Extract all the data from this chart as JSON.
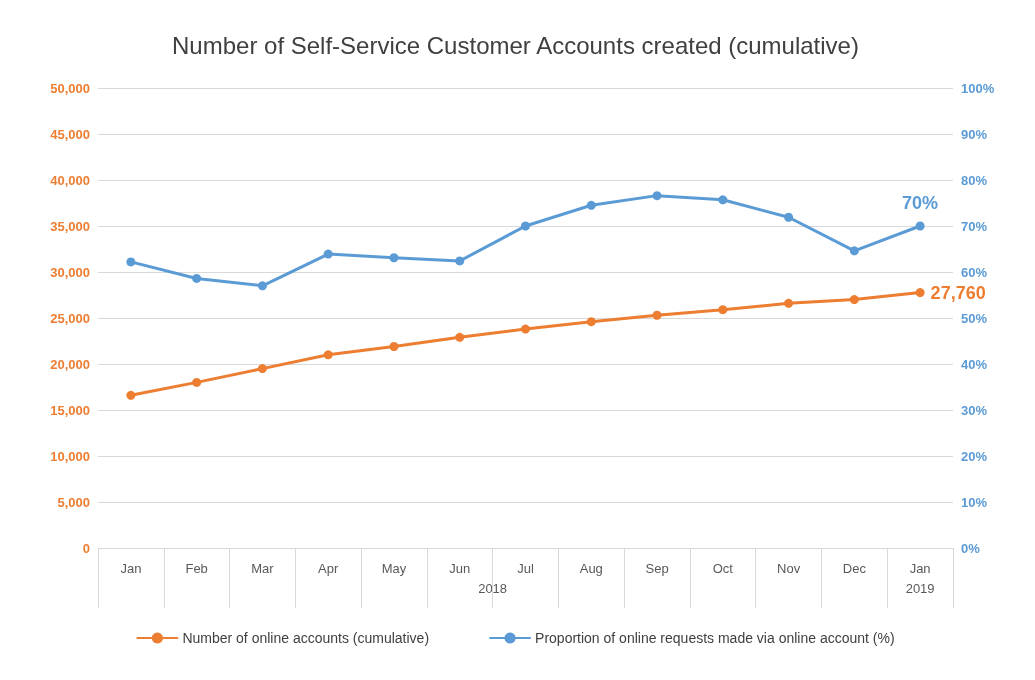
{
  "chart_data": {
    "type": "line",
    "title": "Number of Self-Service Customer Accounts created (cumulative)",
    "categories": [
      "Jan",
      "Feb",
      "Mar",
      "Apr",
      "May",
      "Jun",
      "Jul",
      "Aug",
      "Sep",
      "Oct",
      "Nov",
      "Dec",
      "Jan"
    ],
    "annotations": [
      "2018",
      "2019"
    ],
    "series": [
      {
        "name": "Number of online accounts (cumulative)",
        "color": "#ed7d31",
        "values": [
          16600,
          18000,
          19500,
          21000,
          21900,
          22900,
          23800,
          24600,
          25300,
          25900,
          26600,
          27000,
          27760
        ],
        "value_labels": [
          null,
          null,
          null,
          null,
          null,
          null,
          null,
          null,
          null,
          null,
          null,
          null,
          "27,760"
        ]
      },
      {
        "name": "Proportion of online requests made via online account (%)",
        "color": "#5b9bd5",
        "axis": "y2",
        "values": [
          62.2,
          58.6,
          57.0,
          63.9,
          63.1,
          62.4,
          70.0,
          74.5,
          76.6,
          75.7,
          71.9,
          64.6,
          70
        ],
        "value_labels": [
          null,
          null,
          null,
          null,
          null,
          null,
          null,
          null,
          null,
          null,
          null,
          null,
          "70%"
        ]
      }
    ],
    "ylim": [
      0,
      50000
    ],
    "yticks": [
      0,
      {
        "value": 5000,
        "label": "5,000"
      },
      {
        "value": 10000,
        "label": "10,000"
      },
      {
        "value": 15000,
        "label": "15,000"
      },
      {
        "value": 20000,
        "label": "20,000"
      },
      {
        "value": 25000,
        "label": "25,000"
      },
      {
        "value": 30000,
        "label": "30,000"
      },
      {
        "value": 35000,
        "label": "35,000"
      },
      {
        "value": 40000,
        "label": "40,000"
      },
      {
        "value": 45000,
        "label": "45,000"
      },
      {
        "value": 50000,
        "label": "50,000"
      }
    ],
    "y2lim": [
      0,
      100
    ],
    "y2ticks": [
      {
        "value": 0,
        "label": "0%"
      },
      {
        "value": 10,
        "label": "10%"
      },
      {
        "value": 20,
        "label": "20%"
      },
      {
        "value": 30,
        "label": "30%"
      },
      {
        "value": 40,
        "label": "40%"
      },
      {
        "value": 50,
        "label": "50%"
      },
      {
        "value": 60,
        "label": "60%"
      },
      {
        "value": 70,
        "label": "70%"
      },
      {
        "value": 80,
        "label": "80%"
      },
      {
        "value": 90,
        "label": "90%"
      },
      {
        "value": 100,
        "label": "100%"
      }
    ],
    "grid": true,
    "legend": "bottom",
    "marker": "circle",
    "line_style": "solid"
  }
}
